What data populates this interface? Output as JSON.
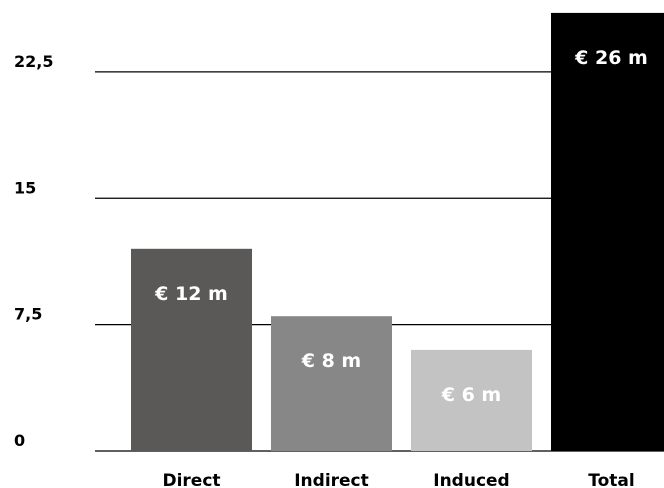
{
  "chart_data": {
    "type": "bar",
    "title": "",
    "xlabel": "",
    "ylabel": "",
    "categories": [
      "Direct",
      "Indirect",
      "Induced",
      "Total"
    ],
    "values": [
      12,
      8,
      6,
      26
    ],
    "data_labels": [
      "€ 12 m",
      "€ 8 m",
      "€ 6 m",
      "€ 26 m"
    ],
    "bar_colors": [
      "#5a5957",
      "#878787",
      "#c3c3c3",
      "#000000"
    ],
    "ylim": [
      0,
      26
    ],
    "yticks": [
      0,
      7.5,
      15,
      22.5
    ],
    "ytick_labels": [
      "0",
      "7,5",
      "15",
      "22,5"
    ],
    "grid": true,
    "legend": "none"
  }
}
